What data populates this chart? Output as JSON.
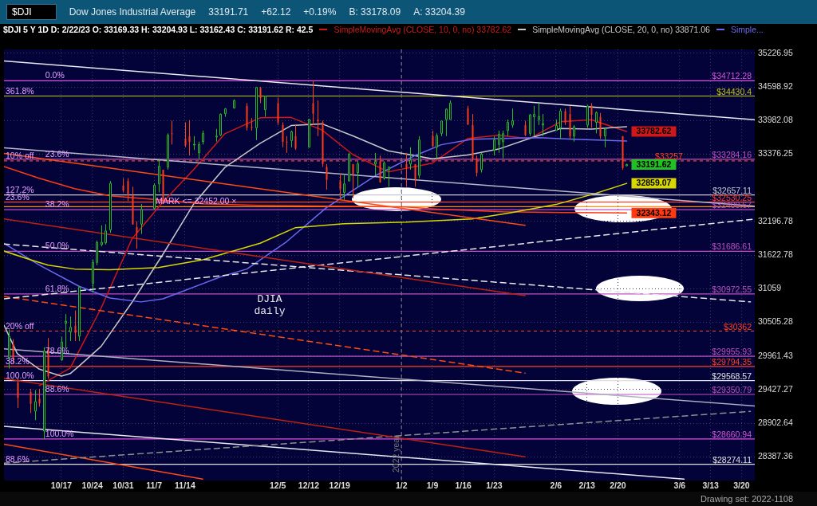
{
  "chart_data": {
    "type": "candlestick",
    "title": "$DJI",
    "subtitle": "$DJI 5 Y 1D  D: 2/22/23  O: 33169.33  H: 33204.93  L: 33162.43  C: 33191.62  R: 42.5",
    "x": [
      "2022-10-05",
      "2022-10-06",
      "2022-10-07",
      "2022-10-10",
      "2022-10-11",
      "2022-10-12",
      "2022-10-13",
      "2022-10-14",
      "2022-10-17",
      "2022-10-18",
      "2022-10-19",
      "2022-10-20",
      "2022-10-21",
      "2022-10-24",
      "2022-10-25",
      "2022-10-26",
      "2022-10-27",
      "2022-10-28",
      "2022-10-31",
      "2022-11-01",
      "2022-11-02",
      "2022-11-03",
      "2022-11-04",
      "2022-11-07",
      "2022-11-08",
      "2022-11-09",
      "2022-11-10",
      "2022-11-11",
      "2022-11-14",
      "2022-11-15",
      "2022-11-16",
      "2022-11-17",
      "2022-11-18",
      "2022-11-21",
      "2022-11-22",
      "2022-11-23",
      "2022-11-25",
      "2022-11-28",
      "2022-11-29",
      "2022-11-30",
      "2022-12-01",
      "2022-12-02",
      "2022-12-05",
      "2022-12-06",
      "2022-12-07",
      "2022-12-08",
      "2022-12-09",
      "2022-12-12",
      "2022-12-13",
      "2022-12-14",
      "2022-12-15",
      "2022-12-16",
      "2022-12-19",
      "2022-12-20",
      "2022-12-21",
      "2022-12-22",
      "2022-12-23",
      "2022-12-27",
      "2022-12-28",
      "2022-12-29",
      "2022-12-30",
      "2023-01-03",
      "2023-01-04",
      "2023-01-05",
      "2023-01-06",
      "2023-01-09",
      "2023-01-10",
      "2023-01-11",
      "2023-01-12",
      "2023-01-13",
      "2023-01-17",
      "2023-01-18",
      "2023-01-19",
      "2023-01-20",
      "2023-01-23",
      "2023-01-24",
      "2023-01-25",
      "2023-01-26",
      "2023-01-27",
      "2023-01-30",
      "2023-01-31",
      "2023-02-01",
      "2023-02-02",
      "2023-02-03",
      "2023-02-06",
      "2023-02-07",
      "2023-02-08",
      "2023-02-09",
      "2023-02-10",
      "2023-02-13",
      "2023-02-14",
      "2023-02-15",
      "2023-02-16",
      "2023-02-17",
      "2023-02-21",
      "2023-02-22"
    ],
    "ohlc": [
      [
        29935,
        30390,
        29760,
        30273
      ],
      [
        30150,
        30230,
        29850,
        29927
      ],
      [
        29535,
        29600,
        29140,
        29297
      ],
      [
        29390,
        29440,
        29060,
        29203
      ],
      [
        29090,
        29420,
        28950,
        29239
      ],
      [
        29280,
        29440,
        29160,
        29210
      ],
      [
        28780,
        30100,
        28660,
        30038
      ],
      [
        30100,
        30250,
        29600,
        29635
      ],
      [
        29900,
        30270,
        29880,
        30186
      ],
      [
        30490,
        30640,
        30080,
        30524
      ],
      [
        30350,
        30600,
        30200,
        30424
      ],
      [
        30450,
        30700,
        30200,
        30333
      ],
      [
        30280,
        31100,
        30200,
        31083
      ],
      [
        31150,
        31550,
        31000,
        31499
      ],
      [
        31500,
        31870,
        31450,
        31837
      ],
      [
        31800,
        32130,
        31770,
        31839
      ],
      [
        31830,
        32150,
        31800,
        32034
      ],
      [
        32050,
        32900,
        32000,
        32861
      ],
      [
        32820,
        32950,
        32700,
        32733
      ],
      [
        32900,
        32950,
        32550,
        32653
      ],
      [
        32650,
        32800,
        32140,
        32148
      ],
      [
        32100,
        32200,
        31730,
        32001
      ],
      [
        32150,
        32500,
        31980,
        32403
      ],
      [
        32420,
        32860,
        32400,
        32827
      ],
      [
        32850,
        33300,
        32700,
        33161
      ],
      [
        33100,
        33100,
        32500,
        32514
      ],
      [
        33150,
        33750,
        33100,
        33716
      ],
      [
        33750,
        33980,
        33550,
        33748
      ],
      [
        33650,
        33950,
        33500,
        33537
      ],
      [
        33700,
        33990,
        33350,
        33593
      ],
      [
        33550,
        33700,
        33450,
        33554
      ],
      [
        33400,
        33600,
        33290,
        33547
      ],
      [
        33600,
        33800,
        33550,
        33746
      ],
      [
        33700,
        33830,
        33600,
        33700
      ],
      [
        33720,
        34110,
        33700,
        34098
      ],
      [
        34110,
        34210,
        34050,
        34195
      ],
      [
        34210,
        34370,
        34200,
        34347
      ],
      [
        34250,
        34300,
        33800,
        33850
      ],
      [
        33870,
        34030,
        33800,
        33853
      ],
      [
        33850,
        34590,
        33630,
        34590
      ],
      [
        34580,
        34600,
        34300,
        34395
      ],
      [
        34180,
        34430,
        34050,
        34430
      ],
      [
        34300,
        34400,
        33900,
        33947
      ],
      [
        33900,
        33950,
        33500,
        33597
      ],
      [
        33600,
        33700,
        33400,
        33598
      ],
      [
        33620,
        33800,
        33500,
        33781
      ],
      [
        33700,
        33900,
        33450,
        33477
      ],
      [
        33500,
        34010,
        33500,
        34005
      ],
      [
        34300,
        34712,
        33900,
        34108
      ],
      [
        34000,
        34350,
        33700,
        33966
      ],
      [
        33950,
        33980,
        33150,
        33203
      ],
      [
        33150,
        33200,
        32750,
        32920
      ],
      [
        32900,
        33030,
        32600,
        32757
      ],
      [
        32700,
        33000,
        32570,
        32850
      ],
      [
        32900,
        33400,
        32900,
        33377
      ],
      [
        33200,
        33200,
        32600,
        33027
      ],
      [
        33050,
        33250,
        32800,
        33204
      ],
      [
        33200,
        33400,
        33000,
        33241
      ],
      [
        33250,
        33350,
        32870,
        32876
      ],
      [
        32950,
        33250,
        32920,
        33221
      ],
      [
        33100,
        33150,
        32800,
        33147
      ],
      [
        33200,
        33400,
        32800,
        33136
      ],
      [
        33200,
        33500,
        33100,
        33270
      ],
      [
        33200,
        33200,
        32800,
        32930
      ],
      [
        33000,
        33700,
        32950,
        33631
      ],
      [
        33700,
        33800,
        33500,
        33518
      ],
      [
        33500,
        33750,
        33300,
        33704
      ],
      [
        33750,
        33980,
        33700,
        33973
      ],
      [
        34000,
        34200,
        33700,
        34190
      ],
      [
        34000,
        34350,
        34000,
        34303
      ],
      [
        34200,
        34250,
        33900,
        33910
      ],
      [
        33900,
        34100,
        33250,
        33297
      ],
      [
        33300,
        33350,
        32980,
        33045
      ],
      [
        33100,
        33400,
        33050,
        33376
      ],
      [
        33450,
        33700,
        33350,
        33630
      ],
      [
        33550,
        33800,
        33400,
        33734
      ],
      [
        33600,
        33800,
        33300,
        33744
      ],
      [
        33800,
        34000,
        33700,
        33949
      ],
      [
        33900,
        34200,
        33850,
        33978
      ],
      [
        33900,
        33980,
        33700,
        33717
      ],
      [
        33750,
        34100,
        33700,
        34086
      ],
      [
        34050,
        34250,
        33700,
        34093
      ],
      [
        34000,
        34300,
        33900,
        34054
      ],
      [
        33900,
        34100,
        33700,
        33926
      ],
      [
        33800,
        34000,
        33800,
        33891
      ],
      [
        33850,
        34200,
        33650,
        34156
      ],
      [
        34150,
        34200,
        33900,
        33949
      ],
      [
        34100,
        34250,
        33650,
        33699
      ],
      [
        33700,
        33900,
        33600,
        33869
      ],
      [
        33900,
        34270,
        33850,
        34246
      ],
      [
        34250,
        34300,
        33850,
        34089
      ],
      [
        33950,
        34150,
        33750,
        34128
      ],
      [
        34050,
        34120,
        33650,
        33697
      ],
      [
        33700,
        33850,
        33500,
        33827
      ],
      [
        33700,
        33700,
        33100,
        33130
      ],
      [
        33169.33,
        33204.93,
        33162.43,
        33191.62
      ]
    ],
    "value_labels": [
      null,
      null,
      null,
      null,
      null,
      null,
      null,
      null,
      null,
      null,
      null,
      null,
      null,
      null,
      null,
      null,
      null,
      null,
      null,
      null,
      null,
      null,
      null,
      null,
      null,
      null,
      null,
      null,
      null,
      null,
      null,
      null,
      null,
      null,
      null,
      null,
      null,
      null,
      null,
      null,
      null,
      null,
      null,
      null,
      null,
      null,
      null,
      null,
      null,
      null,
      null,
      null,
      null,
      null,
      null,
      null,
      null,
      null,
      null,
      null,
      null,
      null,
      null,
      null,
      null,
      null,
      null,
      null,
      null,
      null,
      null,
      null,
      null,
      null,
      null,
      null,
      null,
      null,
      null,
      null,
      null,
      null,
      null,
      null,
      null,
      null,
      null,
      null,
      null,
      null,
      null,
      null,
      null,
      null,
      null,
      "33191.62"
    ],
    "series": [
      {
        "type": "line",
        "color": "#ff4a10",
        "line_style": "solid",
        "x": [
          "2022-10-04",
          "2023-01-30"
        ],
        "values": [
          33390,
          32130
        ]
      },
      {
        "type": "line",
        "color": "#e8e8f0",
        "line_style": "solid",
        "x": [
          "2022-10-04",
          "2023-03-23"
        ],
        "values": [
          35081,
          33996
        ]
      },
      {
        "type": "line",
        "color": "#b8b8c8",
        "line_style": "solid",
        "x": [
          "2022-10-04",
          "2023-03-23"
        ],
        "values": [
          33489,
          32461
        ]
      },
      {
        "type": "line",
        "color": "#c02010",
        "line_style": "solid",
        "x": [
          "2022-10-04",
          "2023-01-30"
        ],
        "values": [
          32239,
          30943
        ]
      },
      {
        "type": "line",
        "color": "#e8e8e8",
        "line_style": "dashed",
        "x": [
          "2022-10-04",
          "2023-03-22"
        ],
        "values": [
          31810,
          30840
        ]
      },
      {
        "type": "line",
        "color": "#e8e8e8",
        "line_style": "dashed",
        "x": [
          "2022-10-04",
          "2023-03-23"
        ],
        "values": [
          30891,
          32239
        ]
      },
      {
        "type": "line",
        "color": "#ff4a10",
        "line_style": "dashed",
        "x": [
          "2022-10-04",
          "2023-01-30"
        ],
        "values": [
          30930,
          29688
        ]
      },
      {
        "type": "line",
        "color": "#b0b0c0",
        "line_style": "solid",
        "x": [
          "2022-10-04",
          "2023-03-23"
        ],
        "values": [
          30075,
          29171
        ]
      },
      {
        "type": "line",
        "color": "#c02010",
        "line_style": "solid",
        "x": [
          "2022-10-04",
          "2023-01-30"
        ],
        "values": [
          29601,
          28387
        ]
      },
      {
        "type": "line",
        "color": "#909090",
        "line_style": "dashed",
        "x": [
          "2022-10-04",
          "2023-03-22"
        ],
        "values": [
          28291,
          29086
        ]
      },
      {
        "type": "line",
        "color": "#e8e8f0",
        "line_style": "solid",
        "x": [
          "2022-10-04",
          "2023-03-07"
        ],
        "values": [
          28855,
          28051
        ]
      },
      {
        "type": "line",
        "color": "#ff4a10",
        "line_style": "solid",
        "x": [
          "2022-10-04",
          "2022-11-18"
        ],
        "values": [
          28579,
          28051
        ]
      },
      {
        "type": "line",
        "color": "#d8d800",
        "line_style": "solid",
        "x": [
          "2022-10-04",
          "2022-10-10",
          "2022-10-14",
          "2022-10-20",
          "2022-10-28",
          "2022-11-08",
          "2022-11-18",
          "2022-12-01",
          "2022-12-09",
          "2022-12-20",
          "2023-01-03",
          "2023-01-18",
          "2023-01-27",
          "2023-02-06",
          "2023-02-15",
          "2023-02-22"
        ],
        "values": [
          31690,
          31544,
          31453,
          31387,
          31374,
          31413,
          31544,
          31823,
          32090,
          32157,
          32184,
          32239,
          32350,
          32490,
          32684,
          32859.07
        ],
        "value_labels": [
          null,
          null,
          null,
          null,
          null,
          null,
          null,
          null,
          null,
          null,
          null,
          null,
          null,
          null,
          null,
          "32859.07"
        ]
      },
      {
        "type": "line",
        "color": "#ff3a10",
        "line_style": "solid",
        "x": [
          "2022-10-04",
          "2022-10-12",
          "2022-10-20",
          "2022-10-28",
          "2022-11-08",
          "2022-11-18",
          "2022-12-01",
          "2022-12-20",
          "2023-01-03",
          "2023-01-11",
          "2023-01-25",
          "2023-02-08",
          "2023-02-22"
        ],
        "values": [
          33155,
          32947,
          32767,
          32642,
          32572,
          32503,
          32475,
          32461,
          32447,
          32405,
          32364,
          32350,
          32343.12
        ],
        "value_labels": [
          null,
          null,
          null,
          null,
          null,
          null,
          null,
          null,
          null,
          null,
          null,
          null,
          "32343.12"
        ]
      },
      {
        "type": "line",
        "name": "Simple...",
        "color": "#6a6af0",
        "line_style": "solid",
        "x": [
          "2022-10-04",
          "2022-10-10",
          "2022-10-12",
          "2022-10-21",
          "2022-10-28",
          "2022-11-04",
          "2022-11-09",
          "2022-11-22",
          "2022-11-28",
          "2022-12-07",
          "2022-12-16",
          "2022-12-27",
          "2023-01-05",
          "2023-01-11",
          "2023-01-18",
          "2023-01-25",
          "2023-02-02",
          "2023-02-10",
          "2023-02-22"
        ],
        "values": [
          31823,
          31544,
          31453,
          31099,
          30904,
          30840,
          30891,
          31256,
          31387,
          31850,
          32434,
          32990,
          33348,
          33545,
          33644,
          33658,
          33672,
          33644,
          33610
        ]
      },
      {
        "type": "line",
        "name": "SimpleMovingAvg (CLOSE, 20, 0, no) 33871.06",
        "color": "#c8c8c8",
        "line_style": "solid",
        "x": [
          "2022-10-04",
          "2022-10-07",
          "2022-10-12",
          "2022-10-17",
          "2022-10-19",
          "2022-10-21",
          "2022-10-26",
          "2022-11-02",
          "2022-11-09",
          "2022-11-16",
          "2022-11-23",
          "2022-12-01",
          "2022-12-08",
          "2022-12-15",
          "2022-12-22",
          "2022-12-30",
          "2023-01-09",
          "2023-01-17",
          "2023-01-24",
          "2023-01-31",
          "2023-02-07",
          "2023-02-14",
          "2023-02-22"
        ],
        "values": [
          30460,
          30000,
          29750,
          29640,
          29680,
          29800,
          30116,
          30835,
          31637,
          32504,
          33139,
          33569,
          33891,
          33922,
          33704,
          33437,
          33293,
          33360,
          33467,
          33657,
          33838,
          33827,
          33871.06
        ]
      },
      {
        "type": "line",
        "name": "SimpleMovingAvg (CLOSE, 10, 0, no) 33782.62",
        "color": "#d01818",
        "line_style": "solid",
        "x": [
          "2022-10-12",
          "2022-10-19",
          "2022-10-26",
          "2022-11-02",
          "2022-11-09",
          "2022-11-16",
          "2022-11-23",
          "2022-12-01",
          "2022-12-08",
          "2022-12-15",
          "2022-12-22",
          "2022-12-30",
          "2023-01-09",
          "2023-01-17",
          "2023-01-24",
          "2023-01-31",
          "2023-02-07",
          "2023-02-14",
          "2023-02-22"
        ],
        "values": [
          29491,
          29768,
          30740,
          31902,
          32534,
          33105,
          33743,
          34032,
          34039,
          33811,
          33369,
          33062,
          33217,
          33657,
          33716,
          33656,
          33959,
          33997,
          33782.62
        ],
        "value_labels": [
          null,
          null,
          null,
          null,
          null,
          null,
          null,
          null,
          null,
          null,
          null,
          null,
          null,
          null,
          null,
          null,
          null,
          null,
          "33782.62"
        ]
      }
    ],
    "xlim": [
      "2022-10-04",
      "2023-03-23"
    ],
    "xticks": [
      {
        "value": "2022-10-17",
        "label": "10/17"
      },
      {
        "value": "2022-10-24",
        "label": "10/24"
      },
      {
        "value": "2022-10-31",
        "label": "10/31"
      },
      {
        "value": "2022-11-07",
        "label": "11/7"
      },
      {
        "value": "2022-11-14",
        "label": "11/14"
      },
      {
        "value": "2022-12-05",
        "label": "12/5"
      },
      {
        "value": "2022-12-12",
        "label": "12/12"
      },
      {
        "value": "2022-12-19",
        "label": "12/19"
      },
      {
        "value": "2023-01-02",
        "label": "1/2"
      },
      {
        "value": "2023-01-09",
        "label": "1/9"
      },
      {
        "value": "2023-01-16",
        "label": "1/16"
      },
      {
        "value": "2023-01-23",
        "label": "1/23"
      },
      {
        "value": "2023-02-06",
        "label": "2/6"
      },
      {
        "value": "2023-02-13",
        "label": "2/13"
      },
      {
        "value": "2023-02-20",
        "label": "2/20"
      },
      {
        "value": "2023-03-06",
        "label": "3/6"
      },
      {
        "value": "2023-03-13",
        "label": "3/13"
      },
      {
        "value": "2023-03-20",
        "label": "3/20"
      }
    ],
    "ylim": [
      28030,
      35300
    ],
    "yticks": [
      28387.36,
      28902.64,
      29427.27,
      29961.43,
      30505.28,
      31059,
      31622.78,
      32196.78,
      33376.25,
      33982.08,
      34598.92,
      35226.95
    ],
    "log": true,
    "grid": true,
    "legend": "top right",
    "marker": "none",
    "ref_lines": [
      {
        "axis": "y",
        "value": 34712.28,
        "label": "$34712.28",
        "color": "#e050e0"
      },
      {
        "axis": "y",
        "value": 34430.4,
        "label": "$34430.4",
        "color": "#c8c800"
      },
      {
        "axis": "y",
        "value": 33284.16,
        "label": "$33284.16",
        "color": "#c050c0"
      },
      {
        "axis": "y",
        "value": 33257,
        "label": "$33257",
        "color": "#ff4020",
        "line_style": "dashed"
      },
      {
        "axis": "y",
        "value": 32657.11,
        "label": "$32657.11",
        "color": "#c8c8d0"
      },
      {
        "axis": "y",
        "value": 32530.25,
        "label": "$32530.25",
        "color": "#ff4020"
      },
      {
        "axis": "y",
        "value": 32452,
        "color": "#ff8c1a"
      },
      {
        "axis": "y",
        "value": 32400.67,
        "label": "$32400.67",
        "color": "#c050c0"
      },
      {
        "axis": "y",
        "value": 31686.61,
        "label": "$31686.61",
        "color": "#c050c0"
      },
      {
        "axis": "y",
        "value": 30972.55,
        "label": "$30972.55",
        "color": "#c050c0"
      },
      {
        "axis": "y",
        "value": 30362,
        "label": "$30362",
        "color": "#ff4020",
        "line_style": "dashed"
      },
      {
        "axis": "y",
        "value": 29955.93,
        "label": "$29955.93",
        "color": "#c050c0"
      },
      {
        "axis": "y",
        "value": 29794.35,
        "label": "$29794.35",
        "color": "#ff4020"
      },
      {
        "axis": "y",
        "value": 29568.57,
        "label": "$29568.57",
        "color": "#e0e0e0"
      },
      {
        "axis": "y",
        "value": 29350.79,
        "label": "$29350.79",
        "color": "#c050c0"
      },
      {
        "axis": "y",
        "value": 28660.94,
        "label": "$28660.94",
        "color": "#e050e0"
      },
      {
        "axis": "y",
        "value": 28274.11,
        "label": "$28274.11",
        "color": "#e0e0e0"
      },
      {
        "axis": "x",
        "value": "2023-01-02",
        "label": "2022 year",
        "color": "#777777",
        "line_style": "dashed"
      }
    ],
    "annotations": [
      "Dow Jones Industrial Average",
      "33191.71",
      "+62.12",
      "+0.19%",
      "B: 33178.09",
      "A: 33204.39",
      {
        "text": "0.0%",
        "x": "2022-10-13",
        "y": 34712.28
      },
      {
        "text": "361.8%",
        "x": "2022-10-04",
        "y": 34430.4
      },
      {
        "text": "23.6%",
        "x": "2022-10-13",
        "y": 33284.16
      },
      {
        "text": "10% off",
        "x": "2022-10-04",
        "y": 33257
      },
      {
        "text": "127.2%",
        "x": "2022-10-04",
        "y": 32657.11
      },
      {
        "text": "23.6%",
        "x": "2022-10-04",
        "y": 32530.25
      },
      {
        "text": "MARK <= 32452.00 ×",
        "x": "2022-11-07",
        "y": 32452
      },
      {
        "text": "38.2%",
        "x": "2022-10-13",
        "y": 32400.67
      },
      {
        "text": "50.0%",
        "x": "2022-10-13",
        "y": 31686.61
      },
      {
        "text": "61.8%",
        "x": "2022-10-13",
        "y": 30972.55
      },
      {
        "text": "20% off",
        "x": "2022-10-04",
        "y": 30362
      },
      {
        "text": "78.6%",
        "x": "2022-10-13",
        "y": 29955.93
      },
      {
        "text": "38.2%",
        "x": "2022-10-04",
        "y": 29794.35
      },
      {
        "text": "100.0%",
        "x": "2022-10-04",
        "y": 29568.57
      },
      {
        "text": "88.6%",
        "x": "2022-10-13",
        "y": 29350.79
      },
      {
        "text": "100.0%",
        "x": "2022-10-13",
        "y": 28660.94
      },
      {
        "text": "88.6%",
        "x": "2022-10-04",
        "y": 28274.11
      },
      "DJIA daily",
      "Drawing set: 2022-1108"
    ]
  }
}
